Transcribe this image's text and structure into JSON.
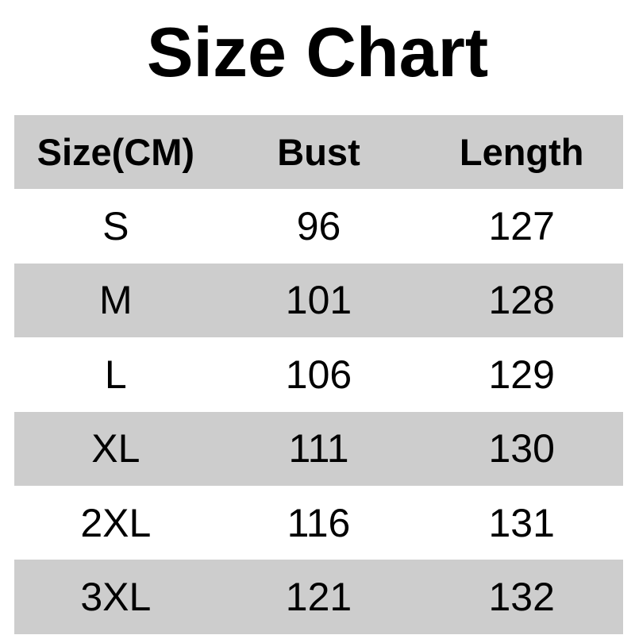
{
  "title": "Size Chart",
  "table": {
    "columns": [
      {
        "label": "Size(CM)"
      },
      {
        "label": "Bust"
      },
      {
        "label": "Length"
      }
    ],
    "rows": [
      {
        "size": "S",
        "bust": "96",
        "length": "127"
      },
      {
        "size": "M",
        "bust": "101",
        "length": "128"
      },
      {
        "size": "L",
        "bust": "106",
        "length": "129"
      },
      {
        "size": "XL",
        "bust": "111",
        "length": "130"
      },
      {
        "size": "2XL",
        "bust": "116",
        "length": "131"
      },
      {
        "size": "3XL",
        "bust": "121",
        "length": "132"
      }
    ]
  },
  "colors": {
    "row_shade": "#cdcdcd",
    "background": "#ffffff",
    "text": "#000000"
  },
  "chart_data": {
    "type": "table",
    "title": "Size Chart",
    "columns": [
      "Size(CM)",
      "Bust",
      "Length"
    ],
    "rows": [
      [
        "S",
        96,
        127
      ],
      [
        "M",
        101,
        128
      ],
      [
        "L",
        106,
        129
      ],
      [
        "XL",
        111,
        130
      ],
      [
        "2XL",
        116,
        131
      ],
      [
        "3XL",
        121,
        132
      ]
    ],
    "notes": "Alternating shaded rows; header and every second data row shaded gray; units in cm per header label"
  }
}
